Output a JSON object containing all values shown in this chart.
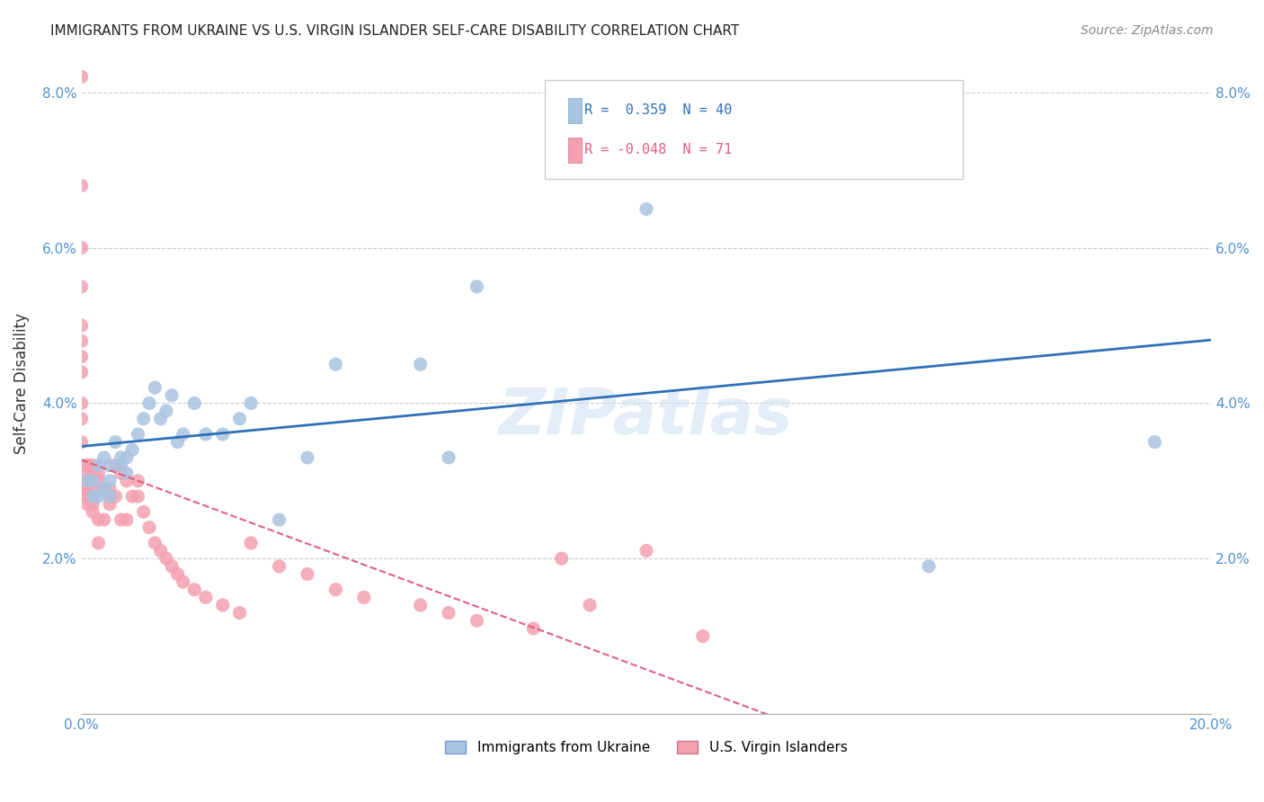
{
  "title": "IMMIGRANTS FROM UKRAINE VS U.S. VIRGIN ISLANDER SELF-CARE DISABILITY CORRELATION CHART",
  "source": "Source: ZipAtlas.com",
  "xlabel_bottom": "",
  "ylabel": "Self-Care Disability",
  "x_min": 0.0,
  "x_max": 0.2,
  "y_min": 0.0,
  "y_max": 0.085,
  "x_ticks": [
    0.0,
    0.05,
    0.1,
    0.15,
    0.2
  ],
  "x_tick_labels": [
    "0.0%",
    "",
    "",
    "",
    "20.0%"
  ],
  "y_ticks": [
    0.0,
    0.02,
    0.04,
    0.06,
    0.08
  ],
  "y_tick_labels": [
    "",
    "2.0%",
    "4.0%",
    "6.0%",
    "8.0%"
  ],
  "blue_R": 0.359,
  "blue_N": 40,
  "pink_R": -0.048,
  "pink_N": 71,
  "blue_color": "#a8c4e0",
  "pink_color": "#f4a0b0",
  "blue_line_color": "#3070b8",
  "pink_line_color": "#e06080",
  "watermark": "ZIPatlas",
  "legend_label_blue": "Immigrants from Ukraine",
  "legend_label_pink": "U.S. Virgin Islanders",
  "blue_scatter_x": [
    0.001,
    0.002,
    0.002,
    0.003,
    0.003,
    0.004,
    0.004,
    0.005,
    0.005,
    0.005,
    0.006,
    0.007,
    0.007,
    0.008,
    0.008,
    0.009,
    0.01,
    0.011,
    0.012,
    0.013,
    0.014,
    0.015,
    0.016,
    0.017,
    0.018,
    0.02,
    0.022,
    0.025,
    0.028,
    0.03,
    0.035,
    0.04,
    0.045,
    0.06,
    0.065,
    0.07,
    0.09,
    0.1,
    0.15,
    0.19
  ],
  "blue_scatter_y": [
    0.03,
    0.03,
    0.028,
    0.032,
    0.028,
    0.033,
    0.029,
    0.032,
    0.03,
    0.028,
    0.035,
    0.033,
    0.032,
    0.033,
    0.031,
    0.034,
    0.036,
    0.038,
    0.04,
    0.042,
    0.038,
    0.039,
    0.041,
    0.035,
    0.036,
    0.04,
    0.036,
    0.036,
    0.038,
    0.04,
    0.025,
    0.033,
    0.045,
    0.045,
    0.033,
    0.055,
    0.07,
    0.065,
    0.019,
    0.035
  ],
  "pink_scatter_x": [
    0.0,
    0.0,
    0.0,
    0.0,
    0.0,
    0.0,
    0.0,
    0.0,
    0.0,
    0.0,
    0.0,
    0.001,
    0.001,
    0.001,
    0.001,
    0.001,
    0.001,
    0.001,
    0.001,
    0.001,
    0.001,
    0.002,
    0.002,
    0.002,
    0.002,
    0.002,
    0.002,
    0.002,
    0.003,
    0.003,
    0.003,
    0.003,
    0.004,
    0.004,
    0.005,
    0.005,
    0.005,
    0.006,
    0.006,
    0.007,
    0.007,
    0.008,
    0.008,
    0.009,
    0.01,
    0.01,
    0.011,
    0.012,
    0.013,
    0.014,
    0.015,
    0.016,
    0.017,
    0.018,
    0.02,
    0.022,
    0.025,
    0.028,
    0.03,
    0.035,
    0.04,
    0.045,
    0.05,
    0.06,
    0.065,
    0.07,
    0.08,
    0.085,
    0.09,
    0.1,
    0.11
  ],
  "pink_scatter_y": [
    0.082,
    0.068,
    0.06,
    0.055,
    0.05,
    0.048,
    0.046,
    0.044,
    0.04,
    0.038,
    0.035,
    0.032,
    0.032,
    0.031,
    0.03,
    0.03,
    0.029,
    0.029,
    0.028,
    0.028,
    0.027,
    0.032,
    0.031,
    0.03,
    0.029,
    0.028,
    0.027,
    0.026,
    0.031,
    0.03,
    0.025,
    0.022,
    0.029,
    0.025,
    0.029,
    0.028,
    0.027,
    0.032,
    0.028,
    0.031,
    0.025,
    0.03,
    0.025,
    0.028,
    0.03,
    0.028,
    0.026,
    0.024,
    0.022,
    0.021,
    0.02,
    0.019,
    0.018,
    0.017,
    0.016,
    0.015,
    0.014,
    0.013,
    0.022,
    0.019,
    0.018,
    0.016,
    0.015,
    0.014,
    0.013,
    0.012,
    0.011,
    0.02,
    0.014,
    0.021,
    0.01
  ]
}
